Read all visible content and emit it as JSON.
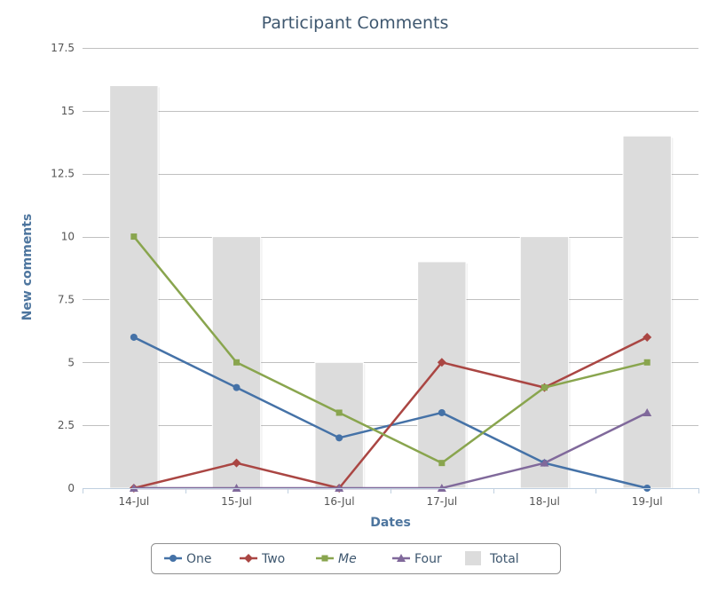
{
  "chart_data": {
    "type": "bar+line",
    "title": "Participant Comments",
    "xlabel": "Dates",
    "ylabel": "New comments",
    "categories": [
      "14-Jul",
      "15-Jul",
      "16-Jul",
      "17-Jul",
      "18-Jul",
      "19-Jul"
    ],
    "yticks": [
      "0",
      "2.5",
      "5",
      "7.5",
      "10",
      "12.5",
      "15",
      "17.5"
    ],
    "ylim": [
      0,
      17.5
    ],
    "grid": true,
    "legend_position": "bottom-center",
    "series": [
      {
        "name": "Total",
        "type": "bar",
        "color": "#dcdcdc",
        "values": [
          16,
          10,
          5,
          9,
          10,
          14
        ]
      },
      {
        "name": "One",
        "type": "line",
        "marker": "circle",
        "color": "#4572a7",
        "values": [
          6,
          4,
          2,
          3,
          1,
          0
        ]
      },
      {
        "name": "Two",
        "type": "line",
        "marker": "diamond",
        "color": "#aa4643",
        "values": [
          0,
          1,
          0,
          5,
          4,
          6
        ]
      },
      {
        "name": "Me",
        "type": "line",
        "marker": "square",
        "color": "#89a54e",
        "values": [
          10,
          5,
          3,
          1,
          4,
          5
        ]
      },
      {
        "name": "Four",
        "type": "line",
        "marker": "triangle",
        "color": "#80699b",
        "values": [
          0,
          0,
          0,
          0,
          1,
          3
        ]
      }
    ],
    "legend_order": [
      "One",
      "Two",
      "Me",
      "Four",
      "Total"
    ]
  }
}
